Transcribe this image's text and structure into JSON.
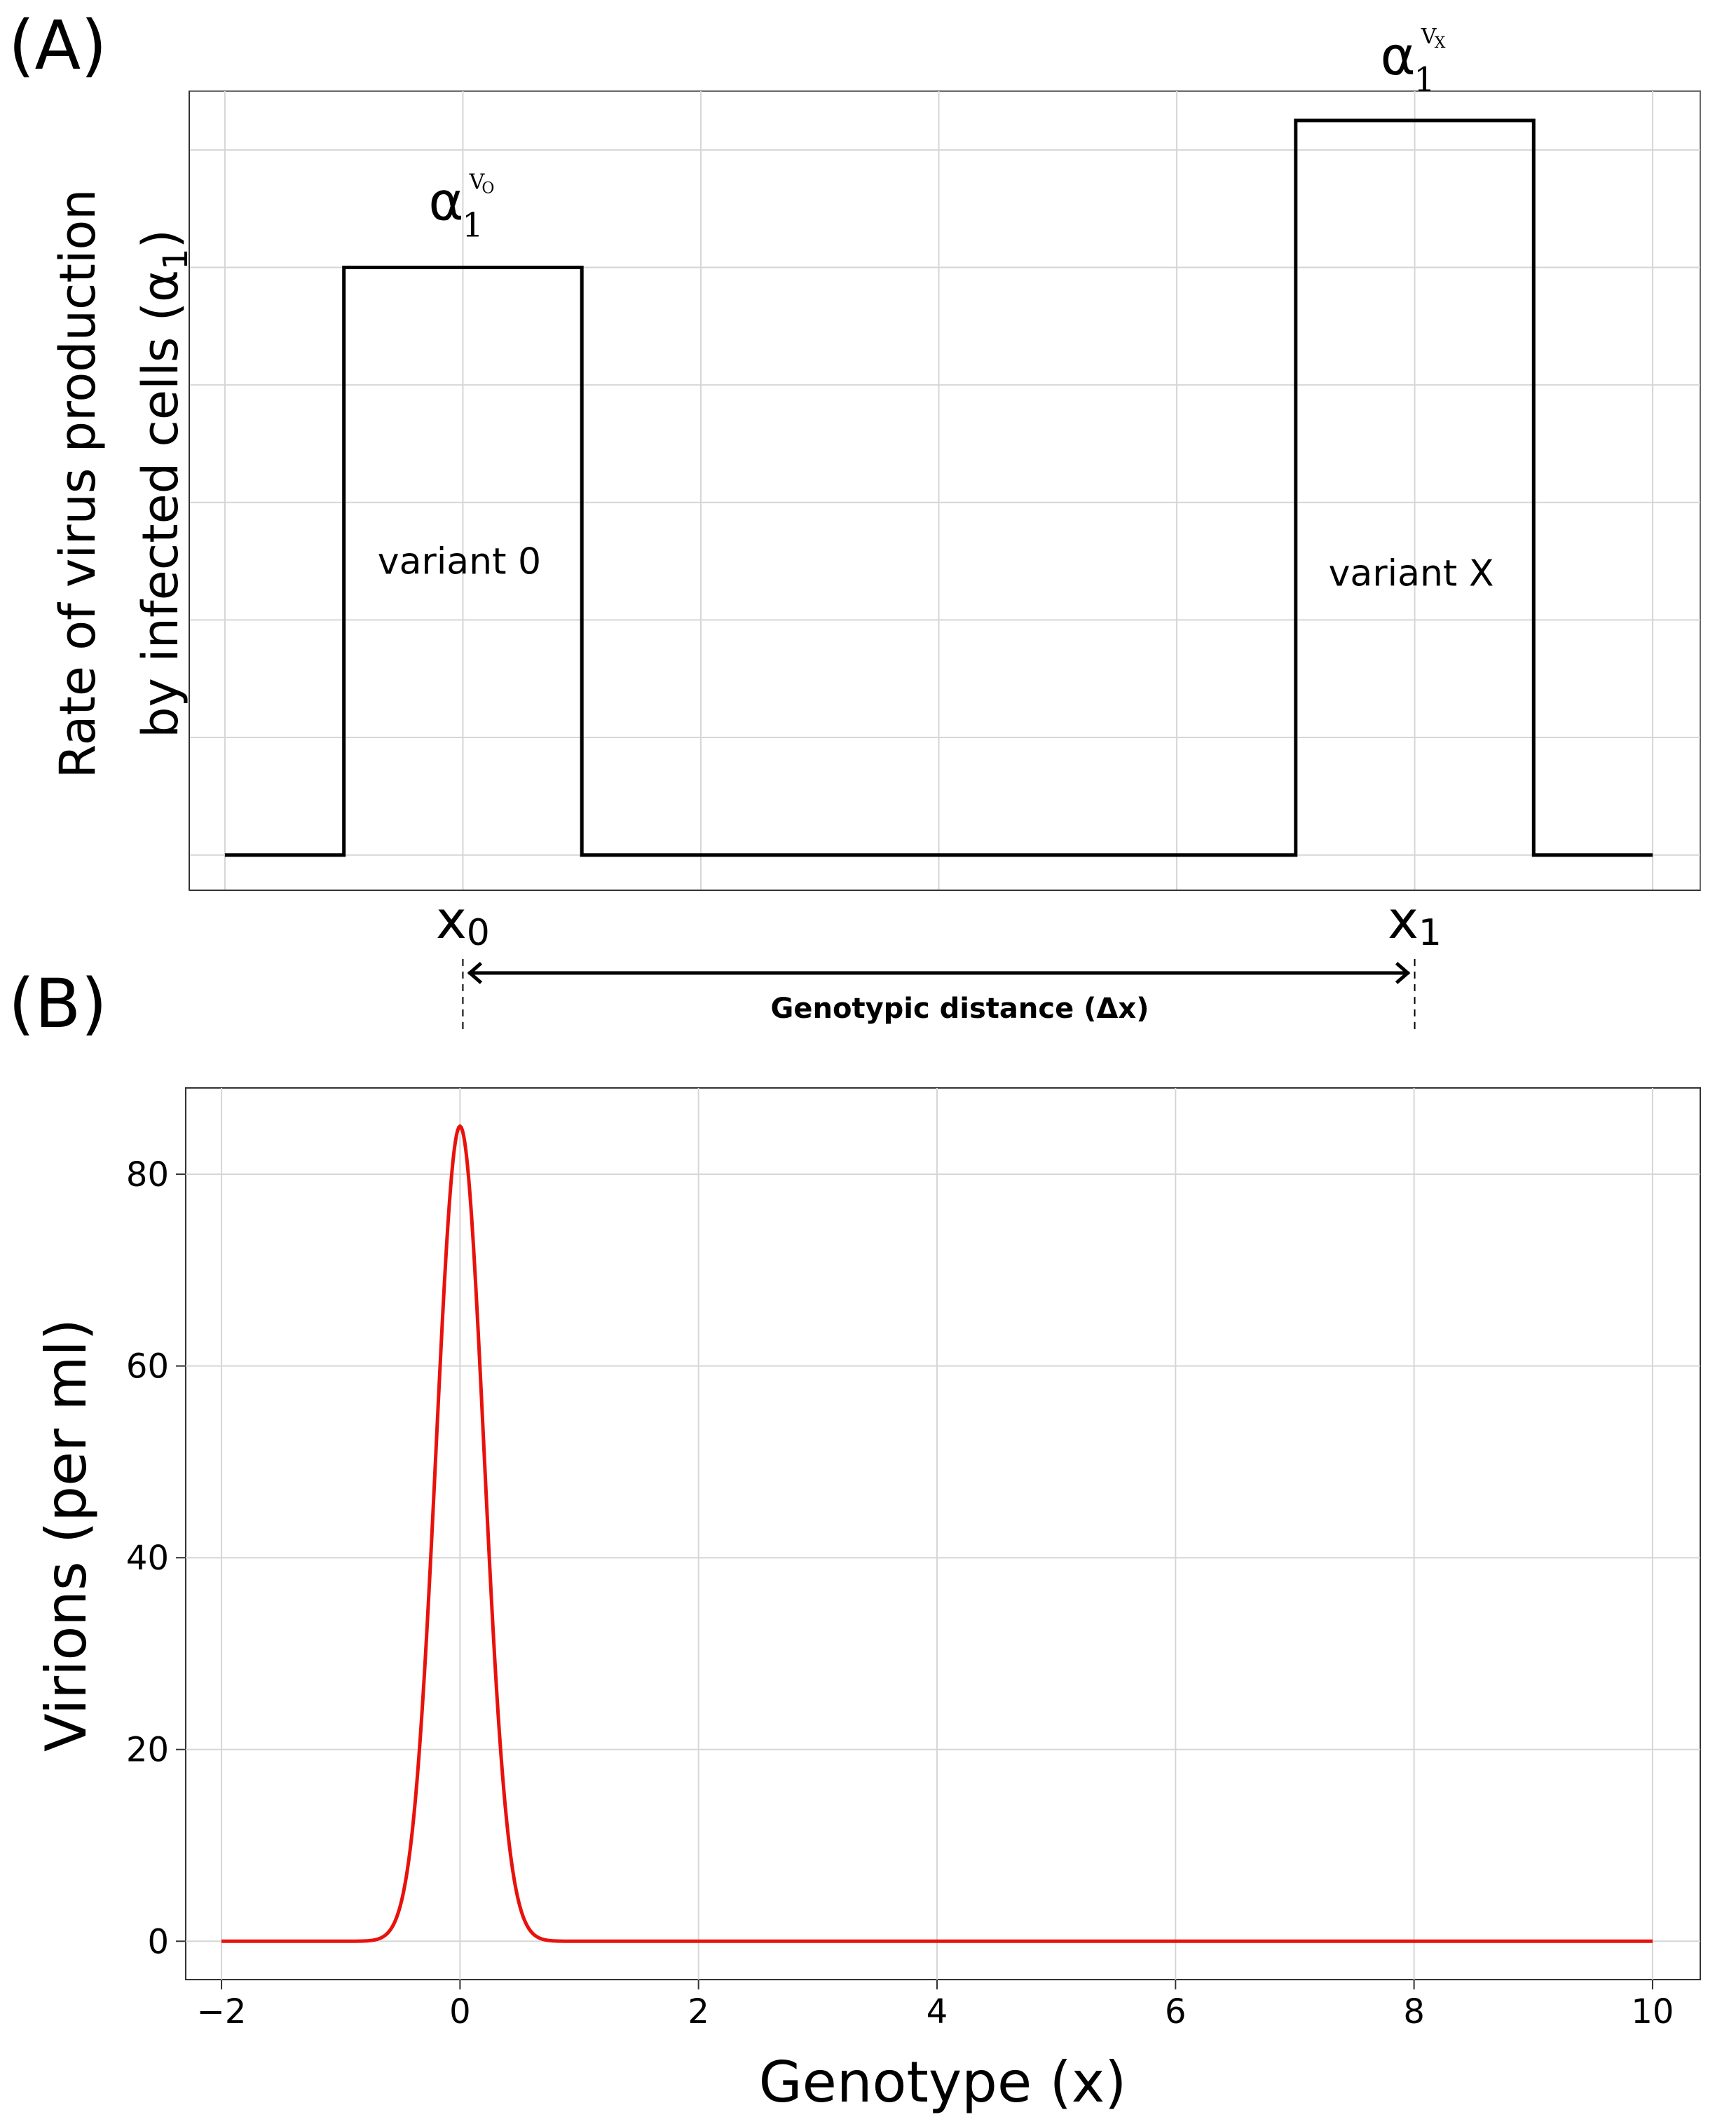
{
  "chart_data": [
    {
      "panel_label": "(A)",
      "type": "line",
      "ylabel_line1": "Rate of virus production",
      "ylabel_line2_prefix": "by infected cells (α",
      "ylabel_line2_sub": "1",
      "ylabel_line2_suffix": ")",
      "x": [
        -2,
        -1,
        -1,
        1,
        1,
        7,
        7,
        9,
        9,
        10
      ],
      "y": [
        0,
        0,
        5,
        5,
        0,
        0,
        6.25,
        6.25,
        0,
        0
      ],
      "xlim": [
        -2.3,
        10.4
      ],
      "ylim": [
        -0.3,
        6.5
      ],
      "x_gridlines": [
        -2,
        0,
        2,
        4,
        6,
        8,
        10
      ],
      "y_gridlines": [
        0,
        1,
        2,
        3,
        4,
        5,
        6
      ],
      "color": "#000000",
      "peak_labels": [
        {
          "base": "α",
          "sub": "1",
          "sup": "V",
          "sup_sub": "O",
          "x": 0
        },
        {
          "base": "α",
          "sub": "1",
          "sup": "V",
          "sup_sub": "X",
          "x": 8
        }
      ],
      "region_labels": [
        {
          "text": "variant 0",
          "x": 0,
          "y": 2.5
        },
        {
          "text": "variant X",
          "x": 8,
          "y": 2.4
        }
      ],
      "markers": [
        {
          "base": "x",
          "sub": "0",
          "x": 0
        },
        {
          "base": "x",
          "sub": "1",
          "x": 8
        }
      ],
      "distance_label": "Genotypic distance (Δx)"
    },
    {
      "panel_label": "(B)",
      "type": "line",
      "title": "",
      "xlabel": "Genotype (x)",
      "ylabel": "Virions (per ml)",
      "xlim": [
        -2.3,
        10.4
      ],
      "ylim": [
        -4,
        89
      ],
      "xticks": [
        -2,
        0,
        2,
        4,
        6,
        8,
        10
      ],
      "xtick_labels": [
        "−2",
        "0",
        "2",
        "4",
        "6",
        "8",
        "10"
      ],
      "yticks": [
        0,
        20,
        40,
        60,
        80
      ],
      "ytick_labels": [
        "0",
        "20",
        "40",
        "60",
        "80"
      ],
      "grid": true,
      "series": [
        {
          "name": "virions",
          "color": "#e8120c",
          "peak": 85,
          "mean": 0,
          "sd": 0.2,
          "x_range": [
            -2,
            10
          ]
        }
      ]
    }
  ]
}
